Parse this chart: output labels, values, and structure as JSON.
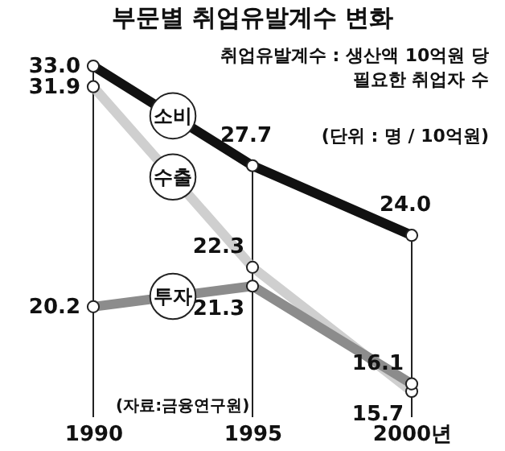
{
  "chart_data": {
    "type": "line",
    "title": "부문별 취업유발계수 변화",
    "x": [
      1990,
      1995,
      2000
    ],
    "xlim": [
      1990,
      2000
    ],
    "xticks": [
      1990,
      1995,
      {
        "value": 2000,
        "label": "2000년"
      }
    ],
    "tick_labels": "x",
    "grid": "x",
    "marker": "circle",
    "series": [
      {
        "name": "소비",
        "color": "#111111",
        "values": [
          33.0,
          27.7,
          24.0
        ],
        "value_labels": [
          "33.0",
          "27.7",
          "24.0"
        ]
      },
      {
        "name": "수출",
        "color": "#cfcfcf",
        "values": [
          31.9,
          22.3,
          15.7
        ],
        "value_labels": [
          "31.9",
          "22.3",
          "15.7"
        ]
      },
      {
        "name": "투자",
        "color": "#8c8c8c",
        "values": [
          20.2,
          21.3,
          16.1
        ],
        "value_labels": [
          "20.2",
          "21.3",
          "16.1"
        ]
      }
    ],
    "annotations": [
      "취업유발계수 : 생산액 10억원 당\n필요한 취업자 수",
      "(단위 : 명 / 10억원)",
      "(자료:금융연구원)"
    ]
  }
}
